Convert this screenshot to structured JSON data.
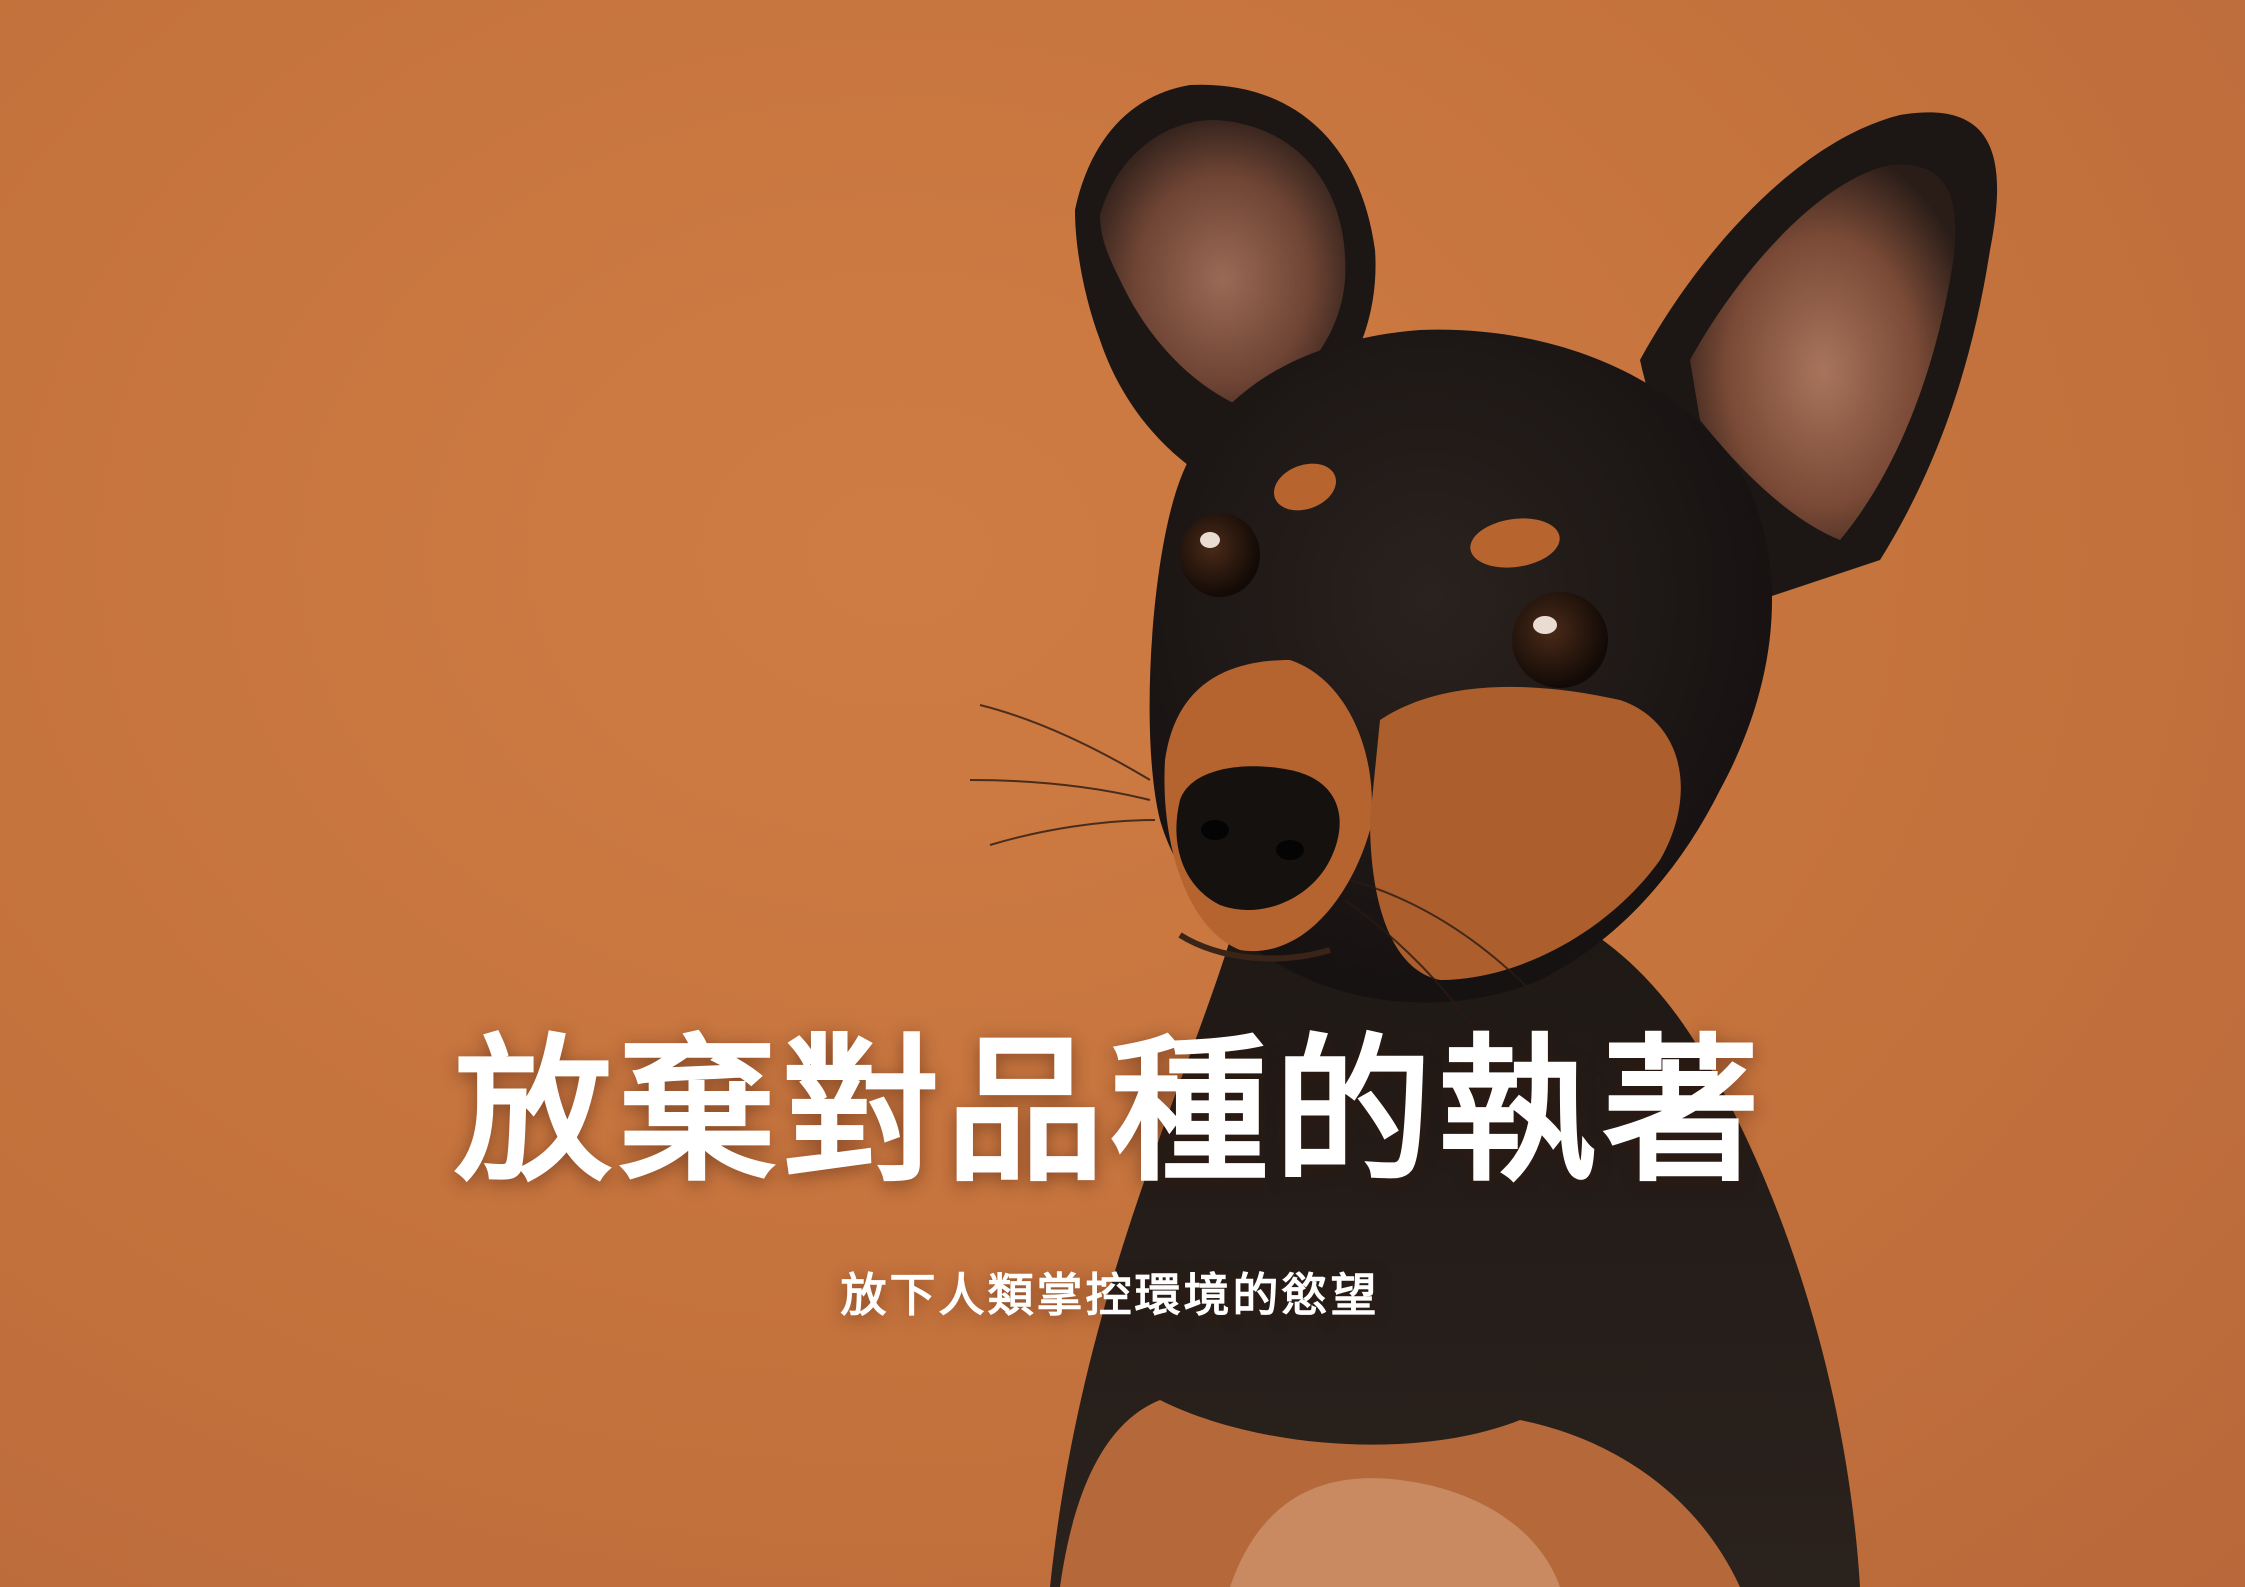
{
  "poster": {
    "title": "放棄對品種的執著",
    "subtitle": "放下人類掌控環境的慾望"
  },
  "colors": {
    "background": "#c8773f",
    "text": "#ffffff",
    "dog_black": "#1c1714",
    "dog_tan": "#b8642e"
  },
  "image": {
    "subject": "dog-icon"
  }
}
